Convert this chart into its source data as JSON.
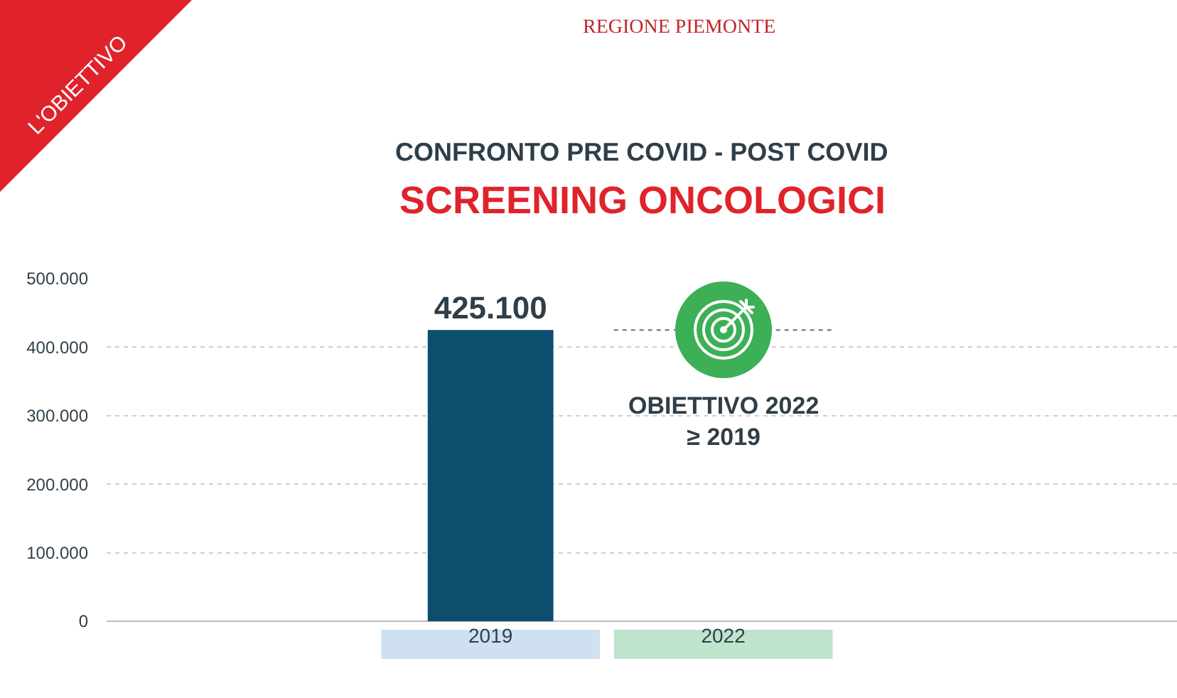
{
  "chart_data": {
    "type": "bar",
    "title": "CONFRONTO PRE COVID - POST COVID",
    "subtitle": "SCREENING ONCOLOGICI",
    "annotations": [
      "L'OBIETTIVO",
      "REGIONE PIEMONTE"
    ],
    "categories": [
      "2019",
      "2022"
    ],
    "series": [
      {
        "color": "#0d4d6e",
        "values": [
          425100,
          null
        ],
        "value_labels": [
          "425.100",
          null
        ]
      }
    ],
    "ylim": [
      0,
      500000
    ],
    "yticks": [
      {
        "value": 0,
        "label": "0"
      },
      {
        "value": 100000,
        "label": "100.000"
      },
      {
        "value": 200000,
        "label": "200.000"
      },
      {
        "value": 300000,
        "label": "300.000"
      },
      {
        "value": 400000,
        "label": "400.000"
      },
      {
        "value": 500000,
        "label": "500.000"
      }
    ],
    "ref_lines": [
      {
        "axis": "y",
        "value": 425100,
        "label": "OBIETTIVO 2022\n≥ 2019",
        "color": "#888888",
        "line_style": "dotted"
      }
    ],
    "grid": "y"
  }
}
